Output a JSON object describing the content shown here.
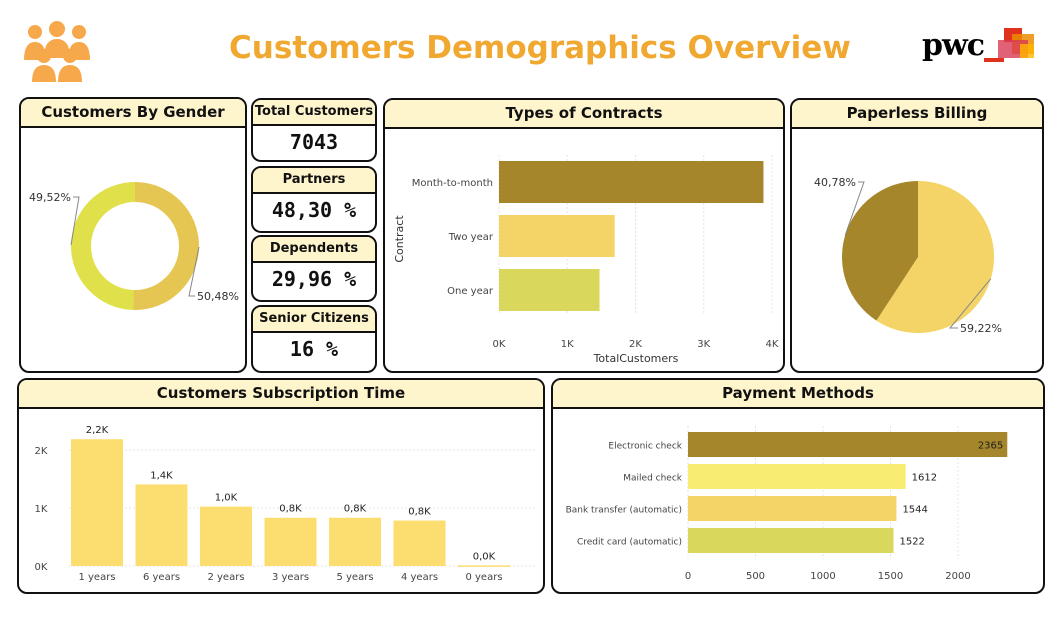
{
  "header": {
    "title": "Customers Demographics Overview",
    "logo_text": "pwc"
  },
  "icons": {
    "header_left": "people-group-icon",
    "header_right": "pwc-logo"
  },
  "colors": {
    "title": "#F0A830",
    "header_fill": "#FFF5CC",
    "dark_gold": "#A5862A",
    "gold": "#F4D467",
    "light_yellow": "#F8ED72",
    "olive_yellow": "#DAD85C",
    "donut_yellow": "#E0E04A",
    "donut_gold": "#E6C653",
    "bar_yellow": "#FCDE70"
  },
  "kpis": [
    {
      "label": "Total Customers",
      "value": "7043"
    },
    {
      "label": "Partners",
      "value": "48,30 %"
    },
    {
      "label": "Dependents",
      "value": "29,96 %"
    },
    {
      "label": "Senior Citizens",
      "value": "16 %"
    }
  ],
  "chart_data": [
    {
      "id": "gender",
      "type": "pie",
      "title": "Customers By Gender",
      "donut": true,
      "slices": [
        {
          "value": 50.48,
          "label": "50,48%",
          "color": "#E6C653"
        },
        {
          "value": 49.52,
          "label": "49,52%",
          "color": "#E0E04A"
        }
      ]
    },
    {
      "id": "contracts",
      "type": "bar",
      "orientation": "horizontal",
      "title": "Types of Contracts",
      "categories": [
        "Month-to-month",
        "Two year",
        "One year"
      ],
      "values": [
        3875,
        1695,
        1473
      ],
      "colors": [
        "#A5862A",
        "#F4D467",
        "#DAD85C"
      ],
      "xlabel": "TotalCustomers",
      "ylabel": "Contract",
      "xlim": [
        0,
        4000
      ],
      "xticks": [
        "0K",
        "1K",
        "2K",
        "3K",
        "4K"
      ],
      "grid": true
    },
    {
      "id": "paperless",
      "type": "pie",
      "title": "Paperless Billing",
      "slices": [
        {
          "value": 59.22,
          "label": "59,22%",
          "color": "#F4D467"
        },
        {
          "value": 40.78,
          "label": "40,78%",
          "color": "#A5862A"
        }
      ]
    },
    {
      "id": "subscription",
      "type": "bar",
      "orientation": "vertical",
      "title": "Customers Subscription Time",
      "categories": [
        "1 years",
        "6 years",
        "2 years",
        "3 years",
        "5 years",
        "4 years",
        "0 years"
      ],
      "values": [
        2186,
        1407,
        1024,
        832,
        832,
        784,
        11
      ],
      "data_labels": [
        "2,2K",
        "1,4K",
        "1,0K",
        "0,8K",
        "0,8K",
        "0,8K",
        "0,0K"
      ],
      "ylim": [
        0,
        2500
      ],
      "yticks": [
        "0K",
        "1K",
        "2K"
      ],
      "color": "#FCDE70",
      "grid": true
    },
    {
      "id": "payment",
      "type": "bar",
      "orientation": "horizontal",
      "title": "Payment Methods",
      "categories": [
        "Electronic check",
        "Mailed check",
        "Bank transfer (automatic)",
        "Credit card (automatic)"
      ],
      "values": [
        2365,
        1612,
        1544,
        1522
      ],
      "data_labels": [
        "2365",
        "1612",
        "1544",
        "1522"
      ],
      "colors": [
        "#A5862A",
        "#F8ED72",
        "#F4D467",
        "#DAD85C"
      ],
      "xlim": [
        0,
        2400
      ],
      "xticks": [
        "0",
        "500",
        "1000",
        "1500",
        "2000"
      ],
      "grid": true
    }
  ]
}
